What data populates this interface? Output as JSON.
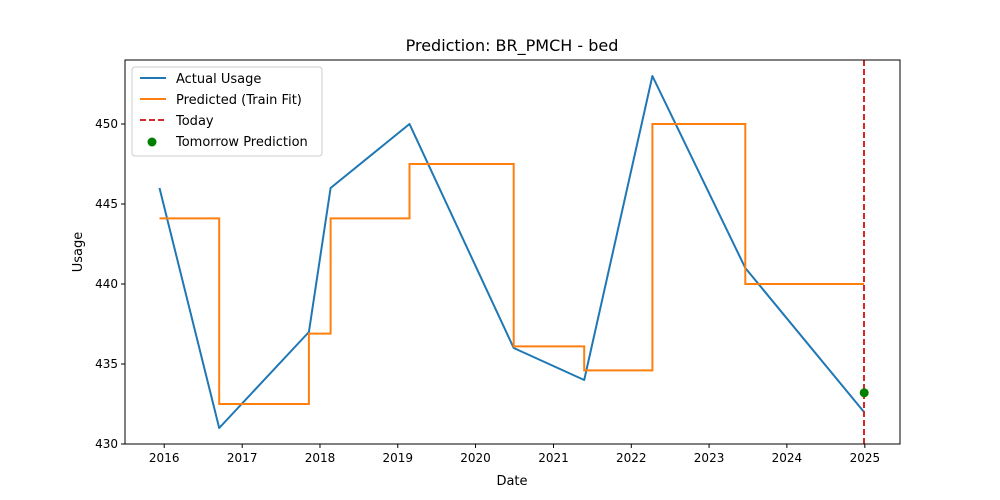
{
  "chart_data": {
    "type": "line",
    "title": "Prediction: BR_PMCH - bed",
    "xlabel": "Date",
    "ylabel": "Usage",
    "xlim": [
      "2015-07-01",
      "2025-06-15"
    ],
    "ylim": [
      430,
      454
    ],
    "x_ticks": [
      "2016",
      "2017",
      "2018",
      "2019",
      "2020",
      "2021",
      "2022",
      "2023",
      "2024",
      "2025"
    ],
    "y_ticks": [
      430,
      435,
      440,
      445,
      450
    ],
    "grid": false,
    "legend_position": "upper-left",
    "colors": {
      "actual": "#1f77b4",
      "predicted": "#ff7f0e",
      "today": "#d62728",
      "tomorrow": "#008000"
    },
    "series": [
      {
        "name": "Actual Usage",
        "style": "line",
        "points": [
          {
            "x": "2015-12-10",
            "y": 446
          },
          {
            "x": "2016-09-15",
            "y": 431
          },
          {
            "x": "2017-11-10",
            "y": 437
          },
          {
            "x": "2018-02-20",
            "y": 446
          },
          {
            "x": "2019-02-25",
            "y": 450
          },
          {
            "x": "2020-06-28",
            "y": 436
          },
          {
            "x": "2021-05-25",
            "y": 434
          },
          {
            "x": "2022-04-10",
            "y": 453
          },
          {
            "x": "2023-06-20",
            "y": 441
          },
          {
            "x": "2024-12-28",
            "y": 432
          }
        ]
      },
      {
        "name": "Predicted (Train Fit)",
        "style": "step",
        "points": [
          {
            "x": "2015-12-10",
            "y": 444.1
          },
          {
            "x": "2016-09-15",
            "y": 432.5
          },
          {
            "x": "2017-11-10",
            "y": 436.9
          },
          {
            "x": "2018-02-20",
            "y": 444.1
          },
          {
            "x": "2019-02-25",
            "y": 447.5
          },
          {
            "x": "2020-06-28",
            "y": 436.1
          },
          {
            "x": "2021-05-25",
            "y": 434.6
          },
          {
            "x": "2022-04-10",
            "y": 450.0
          },
          {
            "x": "2023-06-20",
            "y": 440.0
          },
          {
            "x": "2024-12-28",
            "y": 440.0
          }
        ]
      },
      {
        "name": "Today",
        "style": "vline-dashed",
        "x": "2024-12-28"
      },
      {
        "name": "Tomorrow Prediction",
        "style": "scatter",
        "points": [
          {
            "x": "2024-12-29",
            "y": 433.2
          }
        ]
      }
    ]
  }
}
